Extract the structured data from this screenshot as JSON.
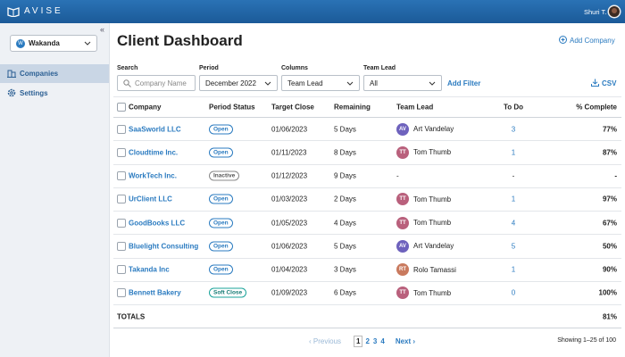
{
  "header": {
    "logo": "AVISE",
    "user": "Shuri T."
  },
  "sidebar": {
    "company": "Wakanda",
    "company_initial": "W",
    "nav": [
      "Companies",
      "Settings"
    ]
  },
  "main": {
    "title": "Client Dashboard",
    "add_company": "Add Company",
    "filters": [
      {
        "label": "Search",
        "value": "Company Name"
      },
      {
        "label": "Period",
        "value": "December 2022"
      },
      {
        "label": "Columns",
        "value": "Team Lead"
      },
      {
        "label": "Team Lead",
        "value": "All"
      }
    ],
    "add_filter": "Add Filter",
    "csv": "CSV",
    "table": {
      "columns": [
        "Company",
        "Period Status",
        "Target Close",
        "Remaining",
        "Team Lead",
        "To Do",
        "% Complete"
      ],
      "rows": [
        {
          "company": "SaaSworld LLC",
          "status": "Open",
          "target_close": "01/06/2023",
          "remaining": "5 Days",
          "lead_initials": "AV",
          "lead": "Art Vandelay",
          "todo": "3",
          "complete": "77%"
        },
        {
          "company": "Cloudtime Inc.",
          "status": "Open",
          "target_close": "01/11/2023",
          "remaining": "8 Days",
          "lead_initials": "TT",
          "lead": "Tom Thumb",
          "todo": "1",
          "complete": "87%"
        },
        {
          "company": "WorkTech Inc.",
          "status": "Inactive",
          "target_close": "01/12/2023",
          "remaining": "9 Days",
          "lead": "-",
          "todo": "-",
          "complete": "-"
        },
        {
          "company": "UrClient LLC",
          "status": "Open",
          "target_close": "01/03/2023",
          "remaining": "2 Days",
          "lead_initials": "TT",
          "lead": "Tom Thumb",
          "todo": "1",
          "complete": "97%"
        },
        {
          "company": "GoodBooks LLC",
          "status": "Open",
          "target_close": "01/05/2023",
          "remaining": "4 Days",
          "lead_initials": "TT",
          "lead": "Tom Thumb",
          "todo": "4",
          "complete": "67%"
        },
        {
          "company": "Bluelight Consulting",
          "status": "Open",
          "target_close": "01/06/2023",
          "remaining": "5 Days",
          "lead_initials": "AV",
          "lead": "Art Vandelay",
          "todo": "5",
          "complete": "50%"
        },
        {
          "company": "Takanda Inc",
          "status": "Open",
          "target_close": "01/04/2023",
          "remaining": "3 Days",
          "lead_initials": "RT",
          "lead": "Rolo Tamassi",
          "todo": "1",
          "complete": "90%"
        },
        {
          "company": "Bennett Bakery",
          "status": "Soft Close",
          "target_close": "01/09/2023",
          "remaining": "6 Days",
          "lead_initials": "TT",
          "lead": "Tom Thumb",
          "todo": "0",
          "complete": "100%"
        }
      ],
      "totals": {
        "label": "TOTALS",
        "complete": "81%"
      }
    },
    "pagination": {
      "previous": "Previous",
      "pages": [
        "1",
        "2",
        "3",
        "4"
      ],
      "next": "Next",
      "showing": "Showing 1–25 of 100"
    }
  }
}
